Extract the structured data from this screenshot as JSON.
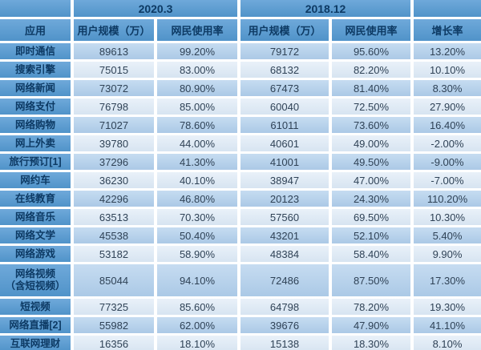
{
  "colors": {
    "header_blue": "#5a9bd1",
    "row_medium_blue": "#b5d1ea",
    "row_light_blue": "#dfebf6",
    "header_text_navy": "#0d3a64",
    "data_text": "#2f4256",
    "separator_white": "#ffffff"
  },
  "chart_data": {
    "type": "table",
    "group_headers": {
      "y2020": "2020.3",
      "y2018": "2018.12"
    },
    "column_headers": {
      "app": "应用",
      "scale_2020": "用户规模（万）",
      "usage_2020": "网民使用率",
      "scale_2018": "用户规模（万）",
      "usage_2018": "网民使用率",
      "growth": "增长率"
    },
    "rows": [
      {
        "app": "即时通信",
        "u2020": "89613",
        "r2020": "99.20%",
        "u2018": "79172",
        "r2018": "95.60%",
        "growth": "13.20%"
      },
      {
        "app": "搜索引擎",
        "u2020": "75015",
        "r2020": "83.00%",
        "u2018": "68132",
        "r2018": "82.20%",
        "growth": "10.10%"
      },
      {
        "app": "网络新闻",
        "u2020": "73072",
        "r2020": "80.90%",
        "u2018": "67473",
        "r2018": "81.40%",
        "growth": "8.30%"
      },
      {
        "app": "网络支付",
        "u2020": "76798",
        "r2020": "85.00%",
        "u2018": "60040",
        "r2018": "72.50%",
        "growth": "27.90%"
      },
      {
        "app": "网络购物",
        "u2020": "71027",
        "r2020": "78.60%",
        "u2018": "61011",
        "r2018": "73.60%",
        "growth": "16.40%"
      },
      {
        "app": "网上外卖",
        "u2020": "39780",
        "r2020": "44.00%",
        "u2018": "40601",
        "r2018": "49.00%",
        "growth": "-2.00%"
      },
      {
        "app": "旅行预订[1]",
        "u2020": "37296",
        "r2020": "41.30%",
        "u2018": "41001",
        "r2018": "49.50%",
        "growth": "-9.00%"
      },
      {
        "app": "网约车",
        "u2020": "36230",
        "r2020": "40.10%",
        "u2018": "38947",
        "r2018": "47.00%",
        "growth": "-7.00%"
      },
      {
        "app": "在线教育",
        "u2020": "42296",
        "r2020": "46.80%",
        "u2018": "20123",
        "r2018": "24.30%",
        "growth": "110.20%"
      },
      {
        "app": "网络音乐",
        "u2020": "63513",
        "r2020": "70.30%",
        "u2018": "57560",
        "r2018": "69.50%",
        "growth": "10.30%"
      },
      {
        "app": "网络文学",
        "u2020": "45538",
        "r2020": "50.40%",
        "u2018": "43201",
        "r2018": "52.10%",
        "growth": "5.40%"
      },
      {
        "app": "网络游戏",
        "u2020": "53182",
        "r2020": "58.90%",
        "u2018": "48384",
        "r2018": "58.40%",
        "growth": "9.90%"
      },
      {
        "app": "网络视频\n（含短视频）",
        "u2020": "85044",
        "r2020": "94.10%",
        "u2018": "72486",
        "r2018": "87.50%",
        "growth": "17.30%"
      },
      {
        "app": "短视频",
        "u2020": "77325",
        "r2020": "85.60%",
        "u2018": "64798",
        "r2018": "78.20%",
        "growth": "19.30%"
      },
      {
        "app": "网络直播[2]",
        "u2020": "55982",
        "r2020": "62.00%",
        "u2018": "39676",
        "r2018": "47.90%",
        "growth": "41.10%"
      },
      {
        "app": "互联网理财",
        "u2020": "16356",
        "r2020": "18.10%",
        "u2018": "15138",
        "r2018": "18.30%",
        "growth": "8.10%"
      }
    ]
  }
}
